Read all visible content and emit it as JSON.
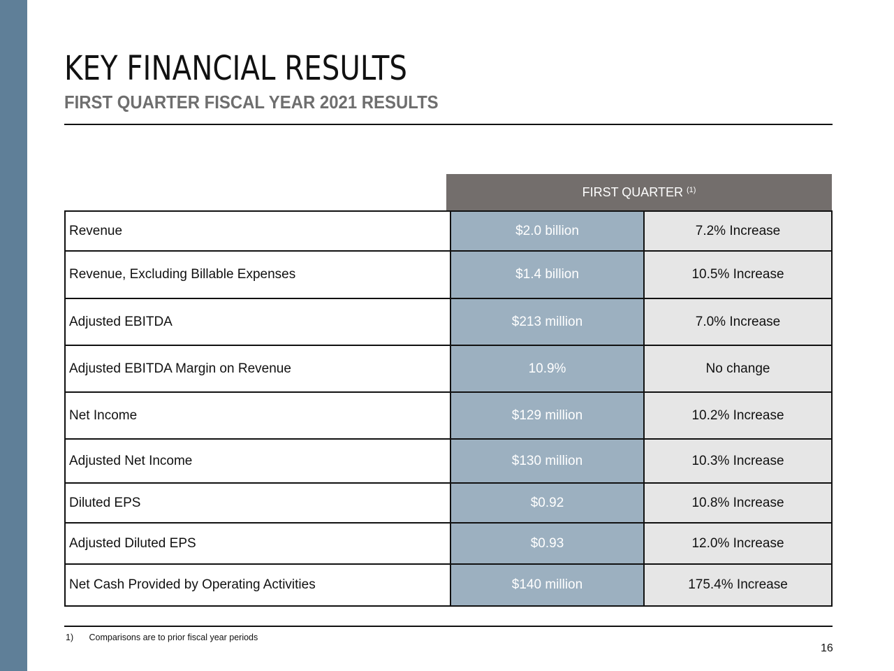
{
  "header": {
    "title": "KEY FINANCIAL RESULTS",
    "subtitle": "FIRST QUARTER FISCAL YEAR 2021 RESULTS"
  },
  "table": {
    "column_header": "FIRST QUARTER",
    "column_header_note": "(1)",
    "rows": [
      {
        "metric": "Revenue",
        "value": "$2.0 billion",
        "change": "7.2% Increase"
      },
      {
        "metric": "Revenue, Excluding Billable Expenses",
        "value": "$1.4 billion",
        "change": "10.5% Increase"
      },
      {
        "metric": "Adjusted EBITDA",
        "value": "$213 million",
        "change": "7.0% Increase"
      },
      {
        "metric": "Adjusted EBITDA Margin on Revenue",
        "value": "10.9%",
        "change": "No change"
      },
      {
        "metric": "Net Income",
        "value": "$129 million",
        "change": "10.2% Increase"
      },
      {
        "metric": "Adjusted Net Income",
        "value": "$130 million",
        "change": "10.3% Increase"
      },
      {
        "metric": "Diluted EPS",
        "value": "$0.92",
        "change": "10.8% Increase"
      },
      {
        "metric": "Adjusted Diluted EPS",
        "value": "$0.93",
        "change": "12.0% Increase"
      },
      {
        "metric": "Net Cash Provided by Operating Activities",
        "value": "$140 million",
        "change": "175.4% Increase"
      }
    ]
  },
  "footnote": {
    "number": "1)",
    "text": "Comparisons are to prior fiscal year periods"
  },
  "page_number": "16",
  "colors": {
    "side_bar": "#5f7f98",
    "header_bg": "#736e6c",
    "value_bg": "#9cb0c0",
    "change_bg": "#e6e6e6"
  }
}
